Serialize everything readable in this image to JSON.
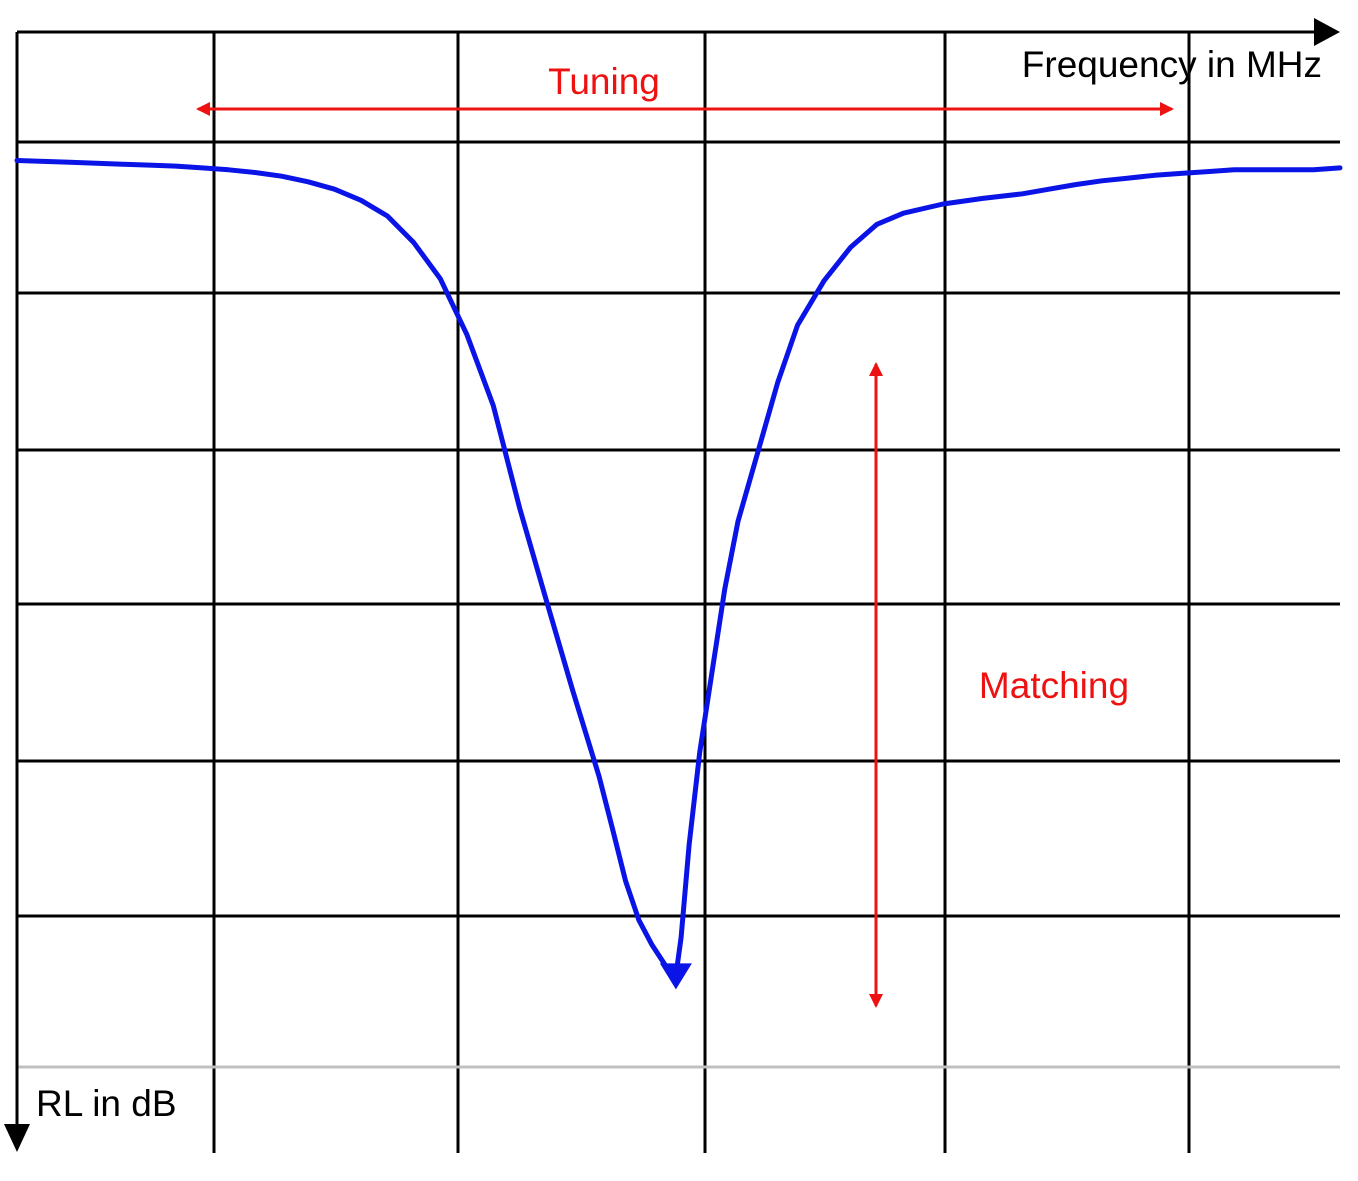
{
  "colors": {
    "grid": "#000000",
    "bottom_gridline": "#c0c0c0",
    "trace": "#0a14e6",
    "annotation": "#ee1111",
    "axis_text": "#000000"
  },
  "chart_data": {
    "type": "line",
    "title": "",
    "xlabel": "Frequency in MHz",
    "ylabel": "RL in dB",
    "x_tick_labels": [],
    "y_tick_labels": [],
    "grid": true,
    "xlim": [
      0,
      100
    ],
    "ylim": [
      0,
      100
    ],
    "y_axis_direction": "downward",
    "series": [
      {
        "x": [
          0,
          2,
          4,
          6,
          8,
          10,
          12,
          14,
          16,
          18,
          20,
          22,
          24,
          26,
          28,
          30,
          32,
          34,
          36,
          38,
          40,
          42,
          44,
          45,
          46,
          47,
          48,
          49,
          49.8,
          50.2,
          50.8,
          51.6,
          52.5,
          53.5,
          54.5,
          56,
          57.5,
          59,
          61,
          63,
          65,
          67,
          70,
          73,
          76,
          78,
          80,
          82,
          84,
          86,
          88,
          90,
          92,
          94,
          96,
          98,
          100
        ],
        "y": [
          2.0,
          2.1,
          2.2,
          2.3,
          2.4,
          2.5,
          2.6,
          2.8,
          3.0,
          3.3,
          3.7,
          4.3,
          5.1,
          6.3,
          8.0,
          10.9,
          14.8,
          20.8,
          28.5,
          39.6,
          49.5,
          59.3,
          68.6,
          74.2,
          79.9,
          84.1,
          86.8,
          89.0,
          90.1,
          86.0,
          76.0,
          66.0,
          57.6,
          48.3,
          41.0,
          33.5,
          26.0,
          19.8,
          15.0,
          11.4,
          8.9,
          7.7,
          6.7,
          6.1,
          5.6,
          5.1,
          4.6,
          4.2,
          3.9,
          3.6,
          3.4,
          3.2,
          3.0,
          3.0,
          3.0,
          3.0,
          2.8
        ]
      }
    ],
    "annotations": [
      {
        "text": "Tuning",
        "type": "double-arrow-horizontal"
      },
      {
        "text": "Matching",
        "type": "double-arrow-vertical"
      }
    ]
  }
}
